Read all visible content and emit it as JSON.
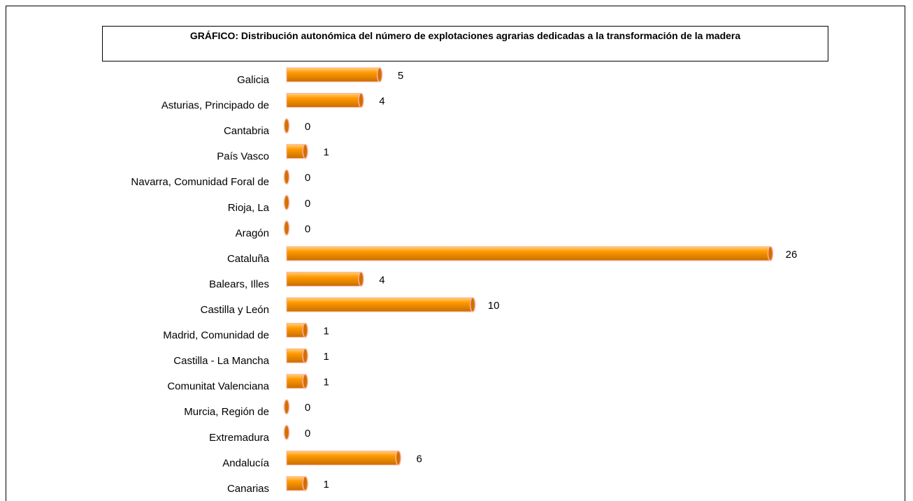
{
  "chart_data": {
    "type": "bar",
    "orientation": "horizontal",
    "title": "GRÁFICO: Distribución autonómica del número de explotaciones agrarias dedicadas a la transformación de la madera",
    "categories": [
      "Galicia",
      "Asturias, Principado de",
      "Cantabria",
      "País Vasco",
      "Navarra, Comunidad Foral de",
      "Rioja, La",
      "Aragón",
      "Cataluña",
      "Balears, Illes",
      "Castilla y León",
      "Madrid, Comunidad de",
      "Castilla - La Mancha",
      "Comunitat Valenciana",
      "Murcia, Región de",
      "Extremadura",
      "Andalucía",
      "Canarias"
    ],
    "values": [
      5,
      4,
      0,
      1,
      0,
      0,
      0,
      26,
      4,
      10,
      1,
      1,
      1,
      0,
      0,
      6,
      1
    ],
    "color": "#ff9900"
  }
}
